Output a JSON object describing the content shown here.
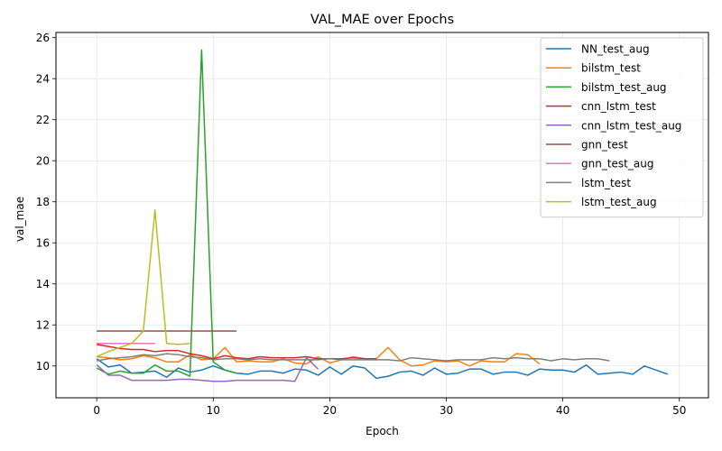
{
  "chart_data": {
    "type": "line",
    "title": "VAL_MAE over Epochs",
    "xlabel": "Epoch",
    "ylabel": "val_mae",
    "xlim": [
      -3.5,
      52.5
    ],
    "ylim": [
      8.45,
      26.25
    ],
    "xticks": [
      0,
      10,
      20,
      30,
      40,
      50
    ],
    "yticks": [
      10,
      12,
      14,
      16,
      18,
      20,
      22,
      24,
      26
    ],
    "grid": true,
    "legend_position": "top-right",
    "series": [
      {
        "name": "NN_test_aug",
        "color": "#1f77b4",
        "x": [
          0,
          1,
          2,
          3,
          4,
          5,
          6,
          7,
          8,
          9,
          10,
          11,
          12,
          13,
          14,
          15,
          16,
          17,
          18,
          19,
          20,
          21,
          22,
          23,
          24,
          25,
          26,
          27,
          28,
          29,
          30,
          31,
          32,
          33,
          34,
          35,
          36,
          37,
          38,
          39,
          40,
          41,
          42,
          43,
          44,
          45,
          46,
          47,
          48,
          49
        ],
        "values": [
          10.35,
          9.95,
          10.05,
          9.65,
          9.7,
          9.75,
          9.45,
          9.9,
          9.7,
          9.8,
          10.0,
          9.8,
          9.65,
          9.6,
          9.75,
          9.75,
          9.65,
          9.85,
          9.8,
          9.55,
          9.95,
          9.6,
          10.0,
          9.9,
          9.4,
          9.5,
          9.7,
          9.75,
          9.55,
          9.9,
          9.6,
          9.65,
          9.85,
          9.85,
          9.6,
          9.7,
          9.7,
          9.55,
          9.85,
          9.8,
          9.8,
          9.7,
          10.05,
          9.6,
          9.65,
          9.7,
          9.6,
          10.0,
          9.8,
          9.6
        ]
      },
      {
        "name": "bilstm_test",
        "color": "#ff7f0e",
        "x": [
          0,
          1,
          2,
          3,
          4,
          5,
          6,
          7,
          8,
          9,
          10,
          11,
          12,
          13,
          14,
          15,
          16,
          17,
          18,
          19,
          20,
          21,
          22,
          23,
          24,
          25,
          26,
          27,
          28,
          29,
          30,
          31,
          32,
          33,
          34,
          35,
          36,
          37,
          38
        ],
        "values": [
          10.45,
          10.4,
          10.3,
          10.35,
          10.5,
          10.4,
          10.2,
          10.2,
          10.55,
          10.3,
          10.35,
          10.9,
          10.2,
          10.25,
          10.2,
          10.2,
          10.35,
          10.15,
          10.1,
          10.45,
          10.15,
          10.3,
          10.45,
          10.35,
          10.35,
          10.9,
          10.3,
          10.0,
          10.05,
          10.25,
          10.2,
          10.25,
          10.0,
          10.25,
          10.2,
          10.2,
          10.6,
          10.55,
          10.1
        ]
      },
      {
        "name": "bilstm_test_aug",
        "color": "#2ca02c",
        "x": [
          0,
          1,
          2,
          3,
          4,
          5,
          6,
          7,
          8,
          9,
          10,
          11,
          12
        ],
        "values": [
          9.9,
          9.6,
          9.75,
          9.65,
          9.65,
          10.05,
          9.75,
          9.75,
          9.5,
          25.4,
          10.2,
          9.8,
          9.65
        ]
      },
      {
        "name": "cnn_lstm_test",
        "color": "#d62728",
        "x": [
          0,
          1,
          2,
          3,
          4,
          5,
          6,
          7,
          8,
          9,
          10,
          11,
          12,
          13,
          14,
          15,
          16,
          17,
          18,
          19,
          20,
          21,
          22,
          23,
          24
        ],
        "values": [
          11.05,
          10.95,
          10.85,
          10.8,
          10.8,
          10.7,
          10.75,
          10.75,
          10.6,
          10.5,
          10.35,
          10.5,
          10.4,
          10.35,
          10.45,
          10.4,
          10.4,
          10.4,
          10.45,
          10.35,
          10.35,
          10.35,
          10.4,
          10.35,
          10.35
        ]
      },
      {
        "name": "cnn_lstm_test_aug",
        "color": "#9467bd",
        "x": [
          0,
          1,
          2,
          3,
          4,
          5,
          6,
          7,
          8,
          9,
          10,
          11,
          12,
          13,
          14,
          15,
          16,
          17,
          18,
          19
        ],
        "values": [
          10.05,
          9.55,
          9.55,
          9.3,
          9.3,
          9.3,
          9.3,
          9.35,
          9.35,
          9.3,
          9.25,
          9.25,
          9.3,
          9.3,
          9.3,
          9.3,
          9.3,
          9.25,
          10.4,
          9.85
        ]
      },
      {
        "name": "gnn_test",
        "color": "#8c564b",
        "x": [
          0,
          1,
          2,
          3,
          4,
          5,
          6,
          7,
          8,
          9,
          10,
          11,
          12
        ],
        "values": [
          11.7,
          11.7,
          11.7,
          11.7,
          11.7,
          11.7,
          11.7,
          11.7,
          11.7,
          11.7,
          11.7,
          11.7,
          11.7
        ]
      },
      {
        "name": "gnn_test_aug",
        "color": "#e377c2",
        "x": [
          0,
          1,
          2,
          3,
          4,
          5
        ],
        "values": [
          11.1,
          11.1,
          11.1,
          11.1,
          11.1,
          11.1
        ]
      },
      {
        "name": "lstm_test",
        "color": "#7f7f7f",
        "x": [
          0,
          1,
          2,
          3,
          4,
          5,
          6,
          7,
          8,
          9,
          10,
          11,
          12,
          13,
          14,
          15,
          16,
          17,
          18,
          19,
          20,
          21,
          22,
          23,
          24,
          25,
          26,
          27,
          28,
          29,
          30,
          31,
          32,
          33,
          34,
          35,
          36,
          37,
          38,
          39,
          40,
          41,
          42,
          43,
          44
        ],
        "values": [
          10.25,
          10.35,
          10.4,
          10.45,
          10.55,
          10.5,
          10.6,
          10.55,
          10.45,
          10.4,
          10.3,
          10.35,
          10.35,
          10.3,
          10.35,
          10.3,
          10.3,
          10.3,
          10.3,
          10.3,
          10.35,
          10.3,
          10.3,
          10.3,
          10.3,
          10.3,
          10.25,
          10.4,
          10.35,
          10.3,
          10.25,
          10.3,
          10.3,
          10.3,
          10.4,
          10.35,
          10.4,
          10.35,
          10.35,
          10.25,
          10.35,
          10.3,
          10.35,
          10.35,
          10.25
        ]
      },
      {
        "name": "lstm_test_aug",
        "color": "#bcbd22",
        "x": [
          0,
          1,
          2,
          3,
          4,
          5,
          6,
          7,
          8
        ],
        "values": [
          10.45,
          10.7,
          10.9,
          11.1,
          11.7,
          17.6,
          11.1,
          11.05,
          11.1
        ]
      }
    ]
  }
}
